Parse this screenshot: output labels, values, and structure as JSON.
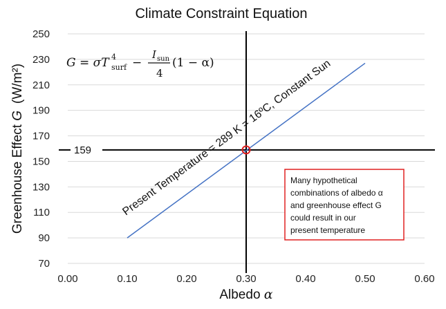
{
  "chart_data": {
    "type": "line",
    "title": "Climate Constraint Equation",
    "xlabel_prefix": "Albedo ",
    "xlabel_symbol": "α",
    "ylabel_prefix": "Greenhouse Effect ",
    "ylabel_symbol": "G",
    "ylabel_units": "(W/m²)",
    "xlim": [
      0.0,
      0.6
    ],
    "ylim": [
      70,
      250
    ],
    "x_ticks": [
      0.0,
      0.1,
      0.2,
      0.3,
      0.4,
      0.5,
      0.6
    ],
    "x_tick_labels": [
      "0.00",
      "0.10",
      "0.20",
      "0.30",
      "0.40",
      "0.50",
      "0.60"
    ],
    "y_ticks": [
      70,
      90,
      110,
      130,
      150,
      170,
      190,
      210,
      230,
      250
    ],
    "y_tick_labels": [
      "70",
      "90",
      "110",
      "130",
      "150",
      "170",
      "190",
      "210",
      "230",
      "250"
    ],
    "grid": "horizontal",
    "series": [
      {
        "x": [
          0.1,
          0.5
        ],
        "y": [
          90,
          227
        ]
      }
    ],
    "line_color": "#4472c4",
    "crosshair_x": 0.3,
    "crosshair_y": 159,
    "marker_color": "#e02020",
    "marker": {
      "x": 0.3,
      "y": 159
    },
    "marker_label": "159",
    "equation": {
      "lhs": "G = σT",
      "sup": "4",
      "sub": "surf",
      "minus": "−",
      "frac_num": "I",
      "frac_num_sub": "sun",
      "frac_den": "4",
      "tail": "(1 − α)"
    },
    "line_annotation": "Present Temperature = 289 K = 16ºC, Constant Sun",
    "note_lines": [
      "Many hypothetical",
      "combinations of albedo α",
      "and greenhouse effect G",
      "could result in our",
      "present temperature"
    ],
    "note_border_color": "#e02020"
  }
}
